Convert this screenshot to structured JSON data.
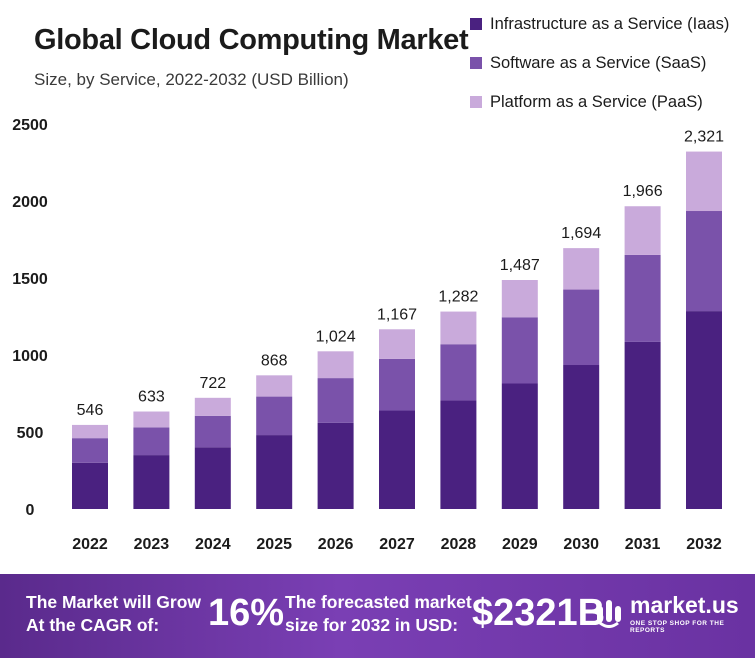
{
  "title": "Global Cloud Computing Market",
  "subtitle": "Size, by Service, 2022-2032 (USD Billion)",
  "colors": {
    "iaas": "#4a2180",
    "saas": "#7a52aa",
    "paas": "#c9aadb"
  },
  "chart_data": {
    "type": "bar",
    "stacked": true,
    "categories": [
      "2022",
      "2023",
      "2024",
      "2025",
      "2026",
      "2027",
      "2028",
      "2029",
      "2030",
      "2031",
      "2032"
    ],
    "series": [
      {
        "name": "Infrastructure as a Service (Iaas)",
        "values": [
          300,
          350,
          400,
          480,
          560,
          640,
          705,
          815,
          935,
          1085,
          1285
        ]
      },
      {
        "name": "Software as a Service (SaaS)",
        "values": [
          160,
          180,
          205,
          250,
          290,
          335,
          365,
          430,
          490,
          565,
          650
        ]
      },
      {
        "name": "Platform as a Service (PaaS)",
        "values": [
          86,
          103,
          117,
          138,
          174,
          192,
          212,
          242,
          269,
          316,
          386
        ]
      }
    ],
    "totals": [
      546,
      633,
      722,
      868,
      1024,
      1167,
      1282,
      1487,
      1694,
      1966,
      2321
    ],
    "total_labels": [
      "546",
      "633",
      "722",
      "868",
      "1,024",
      "1,167",
      "1,282",
      "1,487",
      "1,694",
      "1,966",
      "2,321"
    ],
    "yticks": [
      "0",
      "500",
      "1000",
      "1500",
      "2000",
      "2500"
    ],
    "ylim": [
      0,
      2500
    ],
    "grid": false,
    "legend": "top-right"
  },
  "footer": {
    "cagr_text": "The Market will Grow\nAt the CAGR of:",
    "cagr_value": "16%",
    "forecast_text": "The forecasted market\nsize for 2032 in USD:",
    "forecast_value": "$2321B",
    "brand_name": "market.us",
    "brand_tagline": "ONE STOP SHOP FOR THE REPORTS"
  }
}
